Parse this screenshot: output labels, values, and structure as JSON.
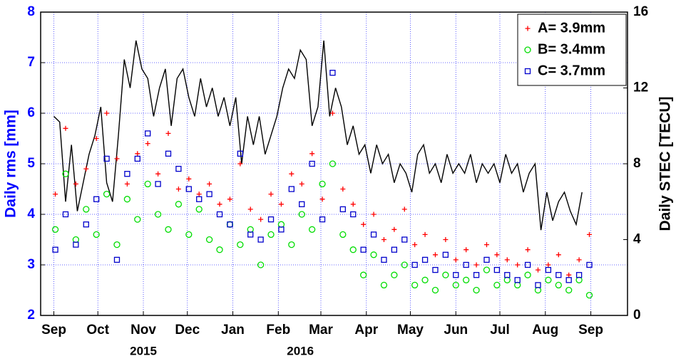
{
  "chart_data": {
    "type": "scatter",
    "ylabel": "Daily rms [mm]",
    "y2label": "Daily STEC [TECU]",
    "xlim": [
      -9,
      391
    ],
    "ylim": [
      2,
      8
    ],
    "y2lim": [
      0,
      16
    ],
    "yticks": [
      2,
      3,
      4,
      5,
      6,
      7,
      8
    ],
    "y2ticks": [
      0,
      4,
      8,
      12,
      16
    ],
    "xticks": [
      {
        "value": 0,
        "label": "Sep"
      },
      {
        "value": 30,
        "label": "Oct"
      },
      {
        "value": 61,
        "label": "Nov"
      },
      {
        "value": 91,
        "label": "Dec"
      },
      {
        "value": 122,
        "label": "Jan"
      },
      {
        "value": 153,
        "label": "Feb"
      },
      {
        "value": 182,
        "label": "Mar"
      },
      {
        "value": 213,
        "label": "Apr"
      },
      {
        "value": 243,
        "label": "May"
      },
      {
        "value": 274,
        "label": "Jun"
      },
      {
        "value": 304,
        "label": "Jul"
      },
      {
        "value": 335,
        "label": "Aug"
      },
      {
        "value": 366,
        "label": "Sep"
      }
    ],
    "year_labels": [
      {
        "value": 61,
        "label": "2015"
      },
      {
        "value": 168,
        "label": "2016"
      }
    ],
    "grid": true,
    "legend": "upper right",
    "x": [
      1,
      8,
      15,
      22,
      29,
      36,
      43,
      50,
      57,
      64,
      71,
      78,
      85,
      92,
      99,
      106,
      113,
      120,
      127,
      134,
      141,
      148,
      155,
      162,
      169,
      176,
      183,
      190,
      197,
      204,
      211,
      218,
      225,
      232,
      239,
      246,
      253,
      260,
      267,
      274,
      281,
      288,
      295,
      302,
      309,
      316,
      323,
      330,
      337,
      344,
      351,
      358,
      365
    ],
    "series": [
      {
        "name": "A= 3.9mm",
        "color": "#ff0000",
        "marker": "plus",
        "values": [
          4.4,
          5.7,
          4.6,
          4.9,
          5.5,
          6.0,
          5.1,
          4.6,
          5.2,
          5.4,
          4.8,
          5.6,
          4.5,
          4.7,
          4.4,
          4.6,
          4.2,
          4.3,
          5.0,
          4.1,
          3.9,
          4.4,
          4.2,
          4.8,
          4.6,
          5.2,
          4.3,
          6.0,
          4.5,
          4.2,
          3.8,
          4.0,
          3.5,
          3.7,
          4.1,
          3.4,
          3.6,
          3.2,
          3.5,
          3.1,
          3.3,
          3.0,
          3.4,
          3.2,
          3.1,
          3.0,
          3.3,
          2.9,
          3.0,
          3.2,
          2.8,
          3.1,
          3.6
        ]
      },
      {
        "name": "B= 3.4mm",
        "color": "#00dd00",
        "marker": "circle",
        "values": [
          3.7,
          4.8,
          3.5,
          4.1,
          3.6,
          4.4,
          3.4,
          4.3,
          3.9,
          4.6,
          4.0,
          3.7,
          4.2,
          3.6,
          4.1,
          3.5,
          3.3,
          3.8,
          3.4,
          3.7,
          3.0,
          3.6,
          3.8,
          3.4,
          4.0,
          3.7,
          4.6,
          5.0,
          3.6,
          3.3,
          2.8,
          3.2,
          2.6,
          2.8,
          3.0,
          2.6,
          2.7,
          2.5,
          2.8,
          2.6,
          2.7,
          2.5,
          2.9,
          2.6,
          2.7,
          2.6,
          2.8,
          2.5,
          2.7,
          2.6,
          2.5,
          2.7,
          2.4
        ]
      },
      {
        "name": "C= 3.7mm",
        "color": "#0000cc",
        "marker": "square",
        "values": [
          3.3,
          4.0,
          3.4,
          3.8,
          4.3,
          5.1,
          3.1,
          4.8,
          5.1,
          5.6,
          4.6,
          5.2,
          4.9,
          4.5,
          4.3,
          4.4,
          4.0,
          3.8,
          5.2,
          3.6,
          3.5,
          3.9,
          3.7,
          4.5,
          4.2,
          5.0,
          3.9,
          6.8,
          4.1,
          4.0,
          3.3,
          3.6,
          3.1,
          3.3,
          3.5,
          3.0,
          3.1,
          2.9,
          3.2,
          2.8,
          3.0,
          2.8,
          3.1,
          2.9,
          2.8,
          2.7,
          3.0,
          2.6,
          2.9,
          2.8,
          2.7,
          2.8,
          3.0
        ]
      },
      {
        "type": "line",
        "axis": "y2",
        "color": "#000000",
        "x": [
          0,
          4,
          8,
          12,
          16,
          20,
          24,
          28,
          32,
          36,
          40,
          44,
          48,
          52,
          56,
          60,
          64,
          68,
          72,
          76,
          80,
          84,
          88,
          92,
          96,
          100,
          104,
          108,
          112,
          116,
          120,
          124,
          128,
          132,
          136,
          140,
          144,
          148,
          152,
          156,
          160,
          164,
          168,
          172,
          176,
          180,
          184,
          188,
          192,
          196,
          200,
          204,
          208,
          212,
          216,
          220,
          224,
          228,
          232,
          236,
          240,
          244,
          248,
          252,
          256,
          260,
          264,
          268,
          272,
          276,
          280,
          284,
          288,
          292,
          296,
          300,
          304,
          308,
          312,
          316,
          320,
          324,
          328,
          332,
          336,
          340,
          344,
          348,
          352,
          356,
          360
        ],
        "values": [
          10.5,
          10.2,
          6.0,
          9.0,
          5.5,
          7.0,
          8.5,
          9.5,
          11.0,
          7.0,
          6.0,
          9.5,
          13.5,
          12.0,
          14.5,
          13.0,
          12.5,
          10.5,
          12.0,
          13.0,
          10.0,
          12.5,
          13.0,
          11.5,
          10.5,
          12.5,
          11.0,
          12.0,
          10.5,
          11.5,
          10.0,
          11.5,
          8.0,
          10.5,
          9.0,
          10.5,
          8.5,
          9.5,
          10.5,
          12.0,
          13.0,
          12.5,
          14.0,
          13.5,
          10.0,
          11.0,
          14.5,
          10.5,
          12.0,
          11.0,
          9.0,
          10.0,
          8.5,
          9.0,
          7.5,
          9.0,
          8.0,
          8.5,
          7.0,
          8.0,
          7.5,
          6.5,
          8.5,
          9.0,
          7.5,
          8.0,
          7.0,
          8.5,
          7.5,
          8.0,
          7.5,
          8.5,
          7.0,
          8.0,
          7.5,
          8.0,
          7.0,
          8.5,
          7.5,
          8.0,
          6.5,
          7.5,
          8.0,
          4.5,
          6.5,
          5.0,
          6.0,
          6.5,
          5.5,
          4.8,
          6.5
        ]
      }
    ]
  }
}
